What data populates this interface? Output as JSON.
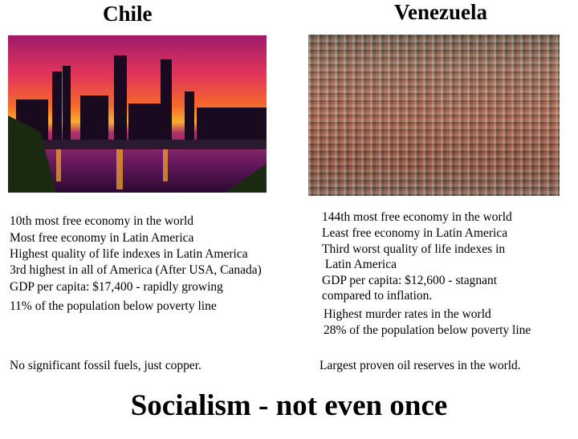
{
  "chile": {
    "title": "Chile",
    "facts": [
      "10th most free economy in the world",
      "Most free economy in Latin America",
      "Highest quality of life indexes in Latin America",
      "3rd highest in all of America (After USA, Canada)",
      "GDP per capita: $17,400 - rapidly growing",
      "11% of the population below poverty line"
    ],
    "resources": "No significant fossil fuels, just copper."
  },
  "venezuela": {
    "title": "Venezuela",
    "facts": [
      "144th most free economy in the world",
      "Least free economy in Latin America",
      "Third worst quality of life indexes in",
      " Latin America",
      "GDP per capita: $12,600 - stagnant",
      "compared to inflation.",
      "Highest murder rates in the world",
      "28% of the population below poverty line"
    ],
    "resources": "Largest proven oil reserves in the world."
  },
  "slogan": "Socialism - not even once"
}
